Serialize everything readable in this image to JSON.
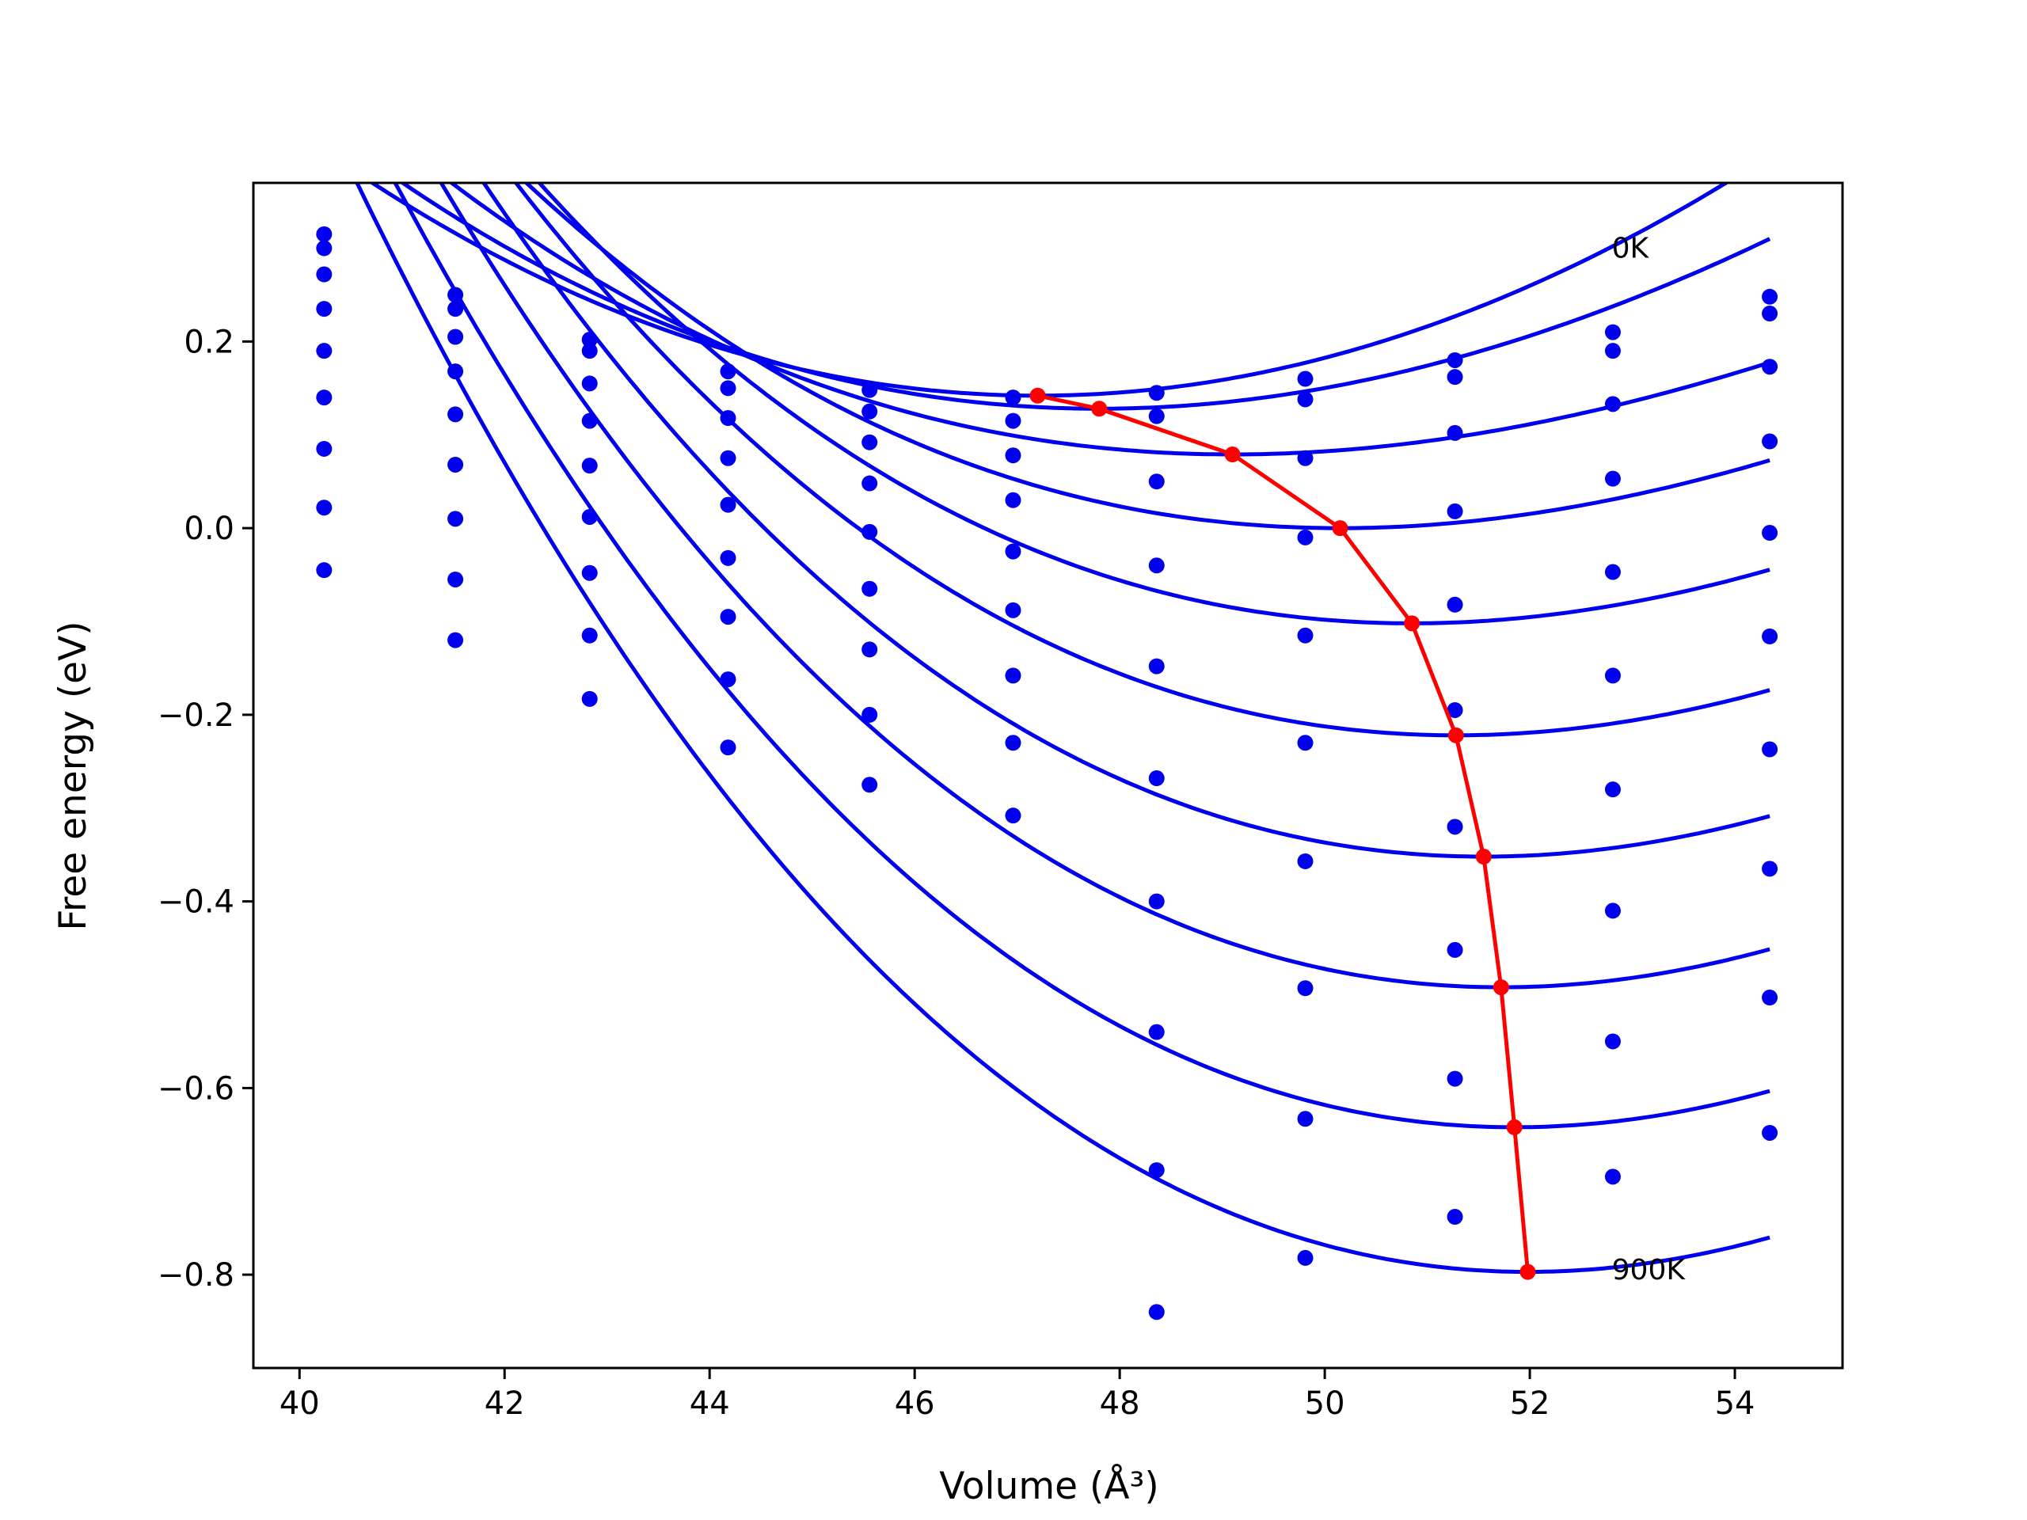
{
  "chart_data": {
    "type": "scatter",
    "title": "",
    "xlabel": "Volume (Å³)",
    "ylabel": "Free energy (eV)",
    "xlim": [
      39.55,
      55.05
    ],
    "ylim": [
      -0.9,
      0.37
    ],
    "xticks": [
      40,
      42,
      44,
      46,
      48,
      50,
      52,
      54
    ],
    "yticks": [
      0.2,
      0.0,
      -0.2,
      -0.4,
      -0.6,
      -0.8
    ],
    "xtick_labels": [
      "40",
      "42",
      "44",
      "46",
      "48",
      "50",
      "52",
      "54"
    ],
    "ytick_labels": [
      "0.2",
      "0.0",
      "−0.2",
      "−0.4",
      "−0.6",
      "−0.8"
    ],
    "grid": false,
    "annotations": [
      {
        "text": "0K",
        "x": 52.8,
        "y": 0.3
      },
      {
        "text": "900K",
        "x": 52.8,
        "y": -0.795
      }
    ],
    "points_color": "#0000ee",
    "fit_color": "#0000ee",
    "minima_color": "#ff0000",
    "volumes": [
      40.24,
      41.52,
      42.83,
      44.18,
      45.56,
      46.96,
      48.36,
      49.81,
      51.27,
      52.81,
      54.34
    ],
    "fits": [
      {
        "v0": 47.2,
        "e0": 0.142,
        "a": 0.00524,
        "b": -2.7e-05
      },
      {
        "v0": 47.8,
        "e0": 0.128,
        "a": 0.00474,
        "b": -7.4e-05
      },
      {
        "v0": 49.1,
        "e0": 0.079,
        "a": 0.00417,
        "b": -0.000111
      },
      {
        "v0": 50.15,
        "e0": 0.0,
        "a": 0.00474,
        "b": -0.000143
      },
      {
        "v0": 50.85,
        "e0": -0.102,
        "a": 0.00524,
        "b": -0.00015
      },
      {
        "v0": 51.28,
        "e0": -0.222,
        "a": 0.00564,
        "b": -0.000153
      },
      {
        "v0": 51.55,
        "e0": -0.352,
        "a": 0.00603,
        "b": -0.00016
      },
      {
        "v0": 51.72,
        "e0": -0.492,
        "a": 0.00637,
        "b": -0.000164
      },
      {
        "v0": 51.85,
        "e0": -0.642,
        "a": 0.00668,
        "b": -0.000166
      },
      {
        "v0": 51.98,
        "e0": -0.797,
        "a": 0.00702,
        "b": -0.000169
      }
    ],
    "minima": {
      "x": [
        47.2,
        47.8,
        49.1,
        50.15,
        50.85,
        51.28,
        51.55,
        51.72,
        51.85,
        51.98
      ],
      "y": [
        0.142,
        0.128,
        0.079,
        0.0,
        -0.102,
        -0.222,
        -0.352,
        -0.492,
        -0.642,
        -0.797
      ]
    },
    "scatter_series": [
      {
        "y": [
          0.315,
          0.25,
          0.202,
          0.168,
          0.148,
          0.14,
          0.145,
          0.16,
          0.18,
          0.21,
          0.248
        ]
      },
      {
        "y": [
          0.3,
          0.235,
          0.19,
          0.15,
          0.125,
          0.115,
          0.12,
          0.138,
          0.162,
          0.19,
          0.23
        ]
      },
      {
        "y": [
          0.272,
          0.205,
          0.155,
          0.118,
          0.092,
          0.078,
          0.05,
          0.075,
          0.102,
          0.133,
          0.173
        ]
      },
      {
        "y": [
          0.235,
          0.168,
          0.115,
          0.075,
          0.048,
          0.03,
          -0.04,
          -0.01,
          0.018,
          0.053,
          0.093
        ]
      },
      {
        "y": [
          0.19,
          0.122,
          0.067,
          0.025,
          -0.004,
          -0.025,
          -0.148,
          -0.115,
          -0.082,
          -0.047,
          -0.005
        ]
      },
      {
        "y": [
          0.14,
          0.068,
          0.012,
          -0.032,
          -0.065,
          -0.088,
          -0.268,
          -0.23,
          -0.195,
          -0.158,
          -0.116
        ]
      },
      {
        "y": [
          0.085,
          0.01,
          -0.048,
          -0.095,
          -0.13,
          -0.158,
          -0.4,
          -0.357,
          -0.32,
          -0.28,
          -0.237
        ]
      },
      {
        "y": [
          0.022,
          -0.055,
          -0.115,
          -0.162,
          -0.2,
          -0.23,
          -0.54,
          -0.493,
          -0.452,
          -0.41,
          -0.365
        ]
      },
      {
        "y": [
          -0.045,
          -0.12,
          -0.183,
          -0.235,
          -0.275,
          -0.308,
          -0.688,
          -0.633,
          -0.59,
          -0.55,
          -0.503
        ]
      },
      {
        "y": [
          null,
          null,
          null,
          null,
          null,
          null,
          -0.84,
          -0.782,
          -0.738,
          -0.695,
          -0.648
        ]
      }
    ]
  }
}
